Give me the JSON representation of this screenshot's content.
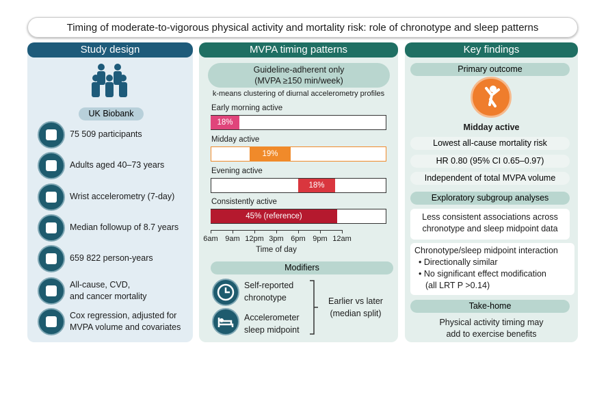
{
  "title": "Timing of moderate-to-vigorous physical activity and mortality risk: role of chronotype and sleep patterns",
  "study_design": {
    "header": "Study design",
    "cohort": "UK Biobank",
    "items": [
      [
        "75 509 participants"
      ],
      [
        "Adults aged 40–73 years"
      ],
      [
        "Wrist accelerometry (7-day)"
      ],
      [
        "Median followup of 8.7 years"
      ],
      [
        "659 822 person-years"
      ],
      [
        "All-cause, CVD,",
        "and cancer mortality"
      ],
      [
        "Cox regression, adjusted for",
        "MVPA volume and covariates"
      ]
    ]
  },
  "mvpa_timing": {
    "header": "MVPA timing patterns",
    "subheader": [
      "Guideline-adherent only",
      "(MVPA ≥150 min/week)"
    ],
    "method": "k-means clustering of diurnal accelerometry profiles",
    "profiles": [
      {
        "name": "Early morning active",
        "label": "18%"
      },
      {
        "name": "Midday active",
        "label": "19%"
      },
      {
        "name": "Evening active",
        "label": "18%"
      },
      {
        "name": "Consistently active",
        "label": "45% (reference)"
      }
    ],
    "axis_ticks": [
      "6am",
      "9am",
      "12pm",
      "3pm",
      "6pm",
      "9pm",
      "12am"
    ],
    "axis_label": "Time of day",
    "modifiers": {
      "header": "Modifiers",
      "items": [
        [
          "Self-reported",
          "chronotype"
        ],
        [
          "Accelerometer",
          "sleep midpoint"
        ]
      ],
      "comparison": [
        "Earlier vs later",
        "(median split)"
      ]
    }
  },
  "key_findings": {
    "header": "Key findings",
    "primary_header": "Primary outcome",
    "primary": "Midday active",
    "results": [
      "Lowest all-cause mortality risk",
      "HR 0.80 (95% CI 0.65–0.97)",
      "Independent of total MVPA volume"
    ],
    "exploratory_header": "Exploratory subgroup analyses",
    "exploratory": [
      "Less consistent associations across",
      "chronotype and sleep midpoint data"
    ],
    "interaction_title": "Chronotype/sleep midpoint interaction",
    "interaction_bullets": [
      "Directionally similar",
      "No significant effect modification"
    ],
    "interaction_note": "(all LRT P >0.14)",
    "takehome_header": "Take-home",
    "takehome": [
      "Physical activity timing may",
      "add to exercise benefits"
    ]
  }
}
